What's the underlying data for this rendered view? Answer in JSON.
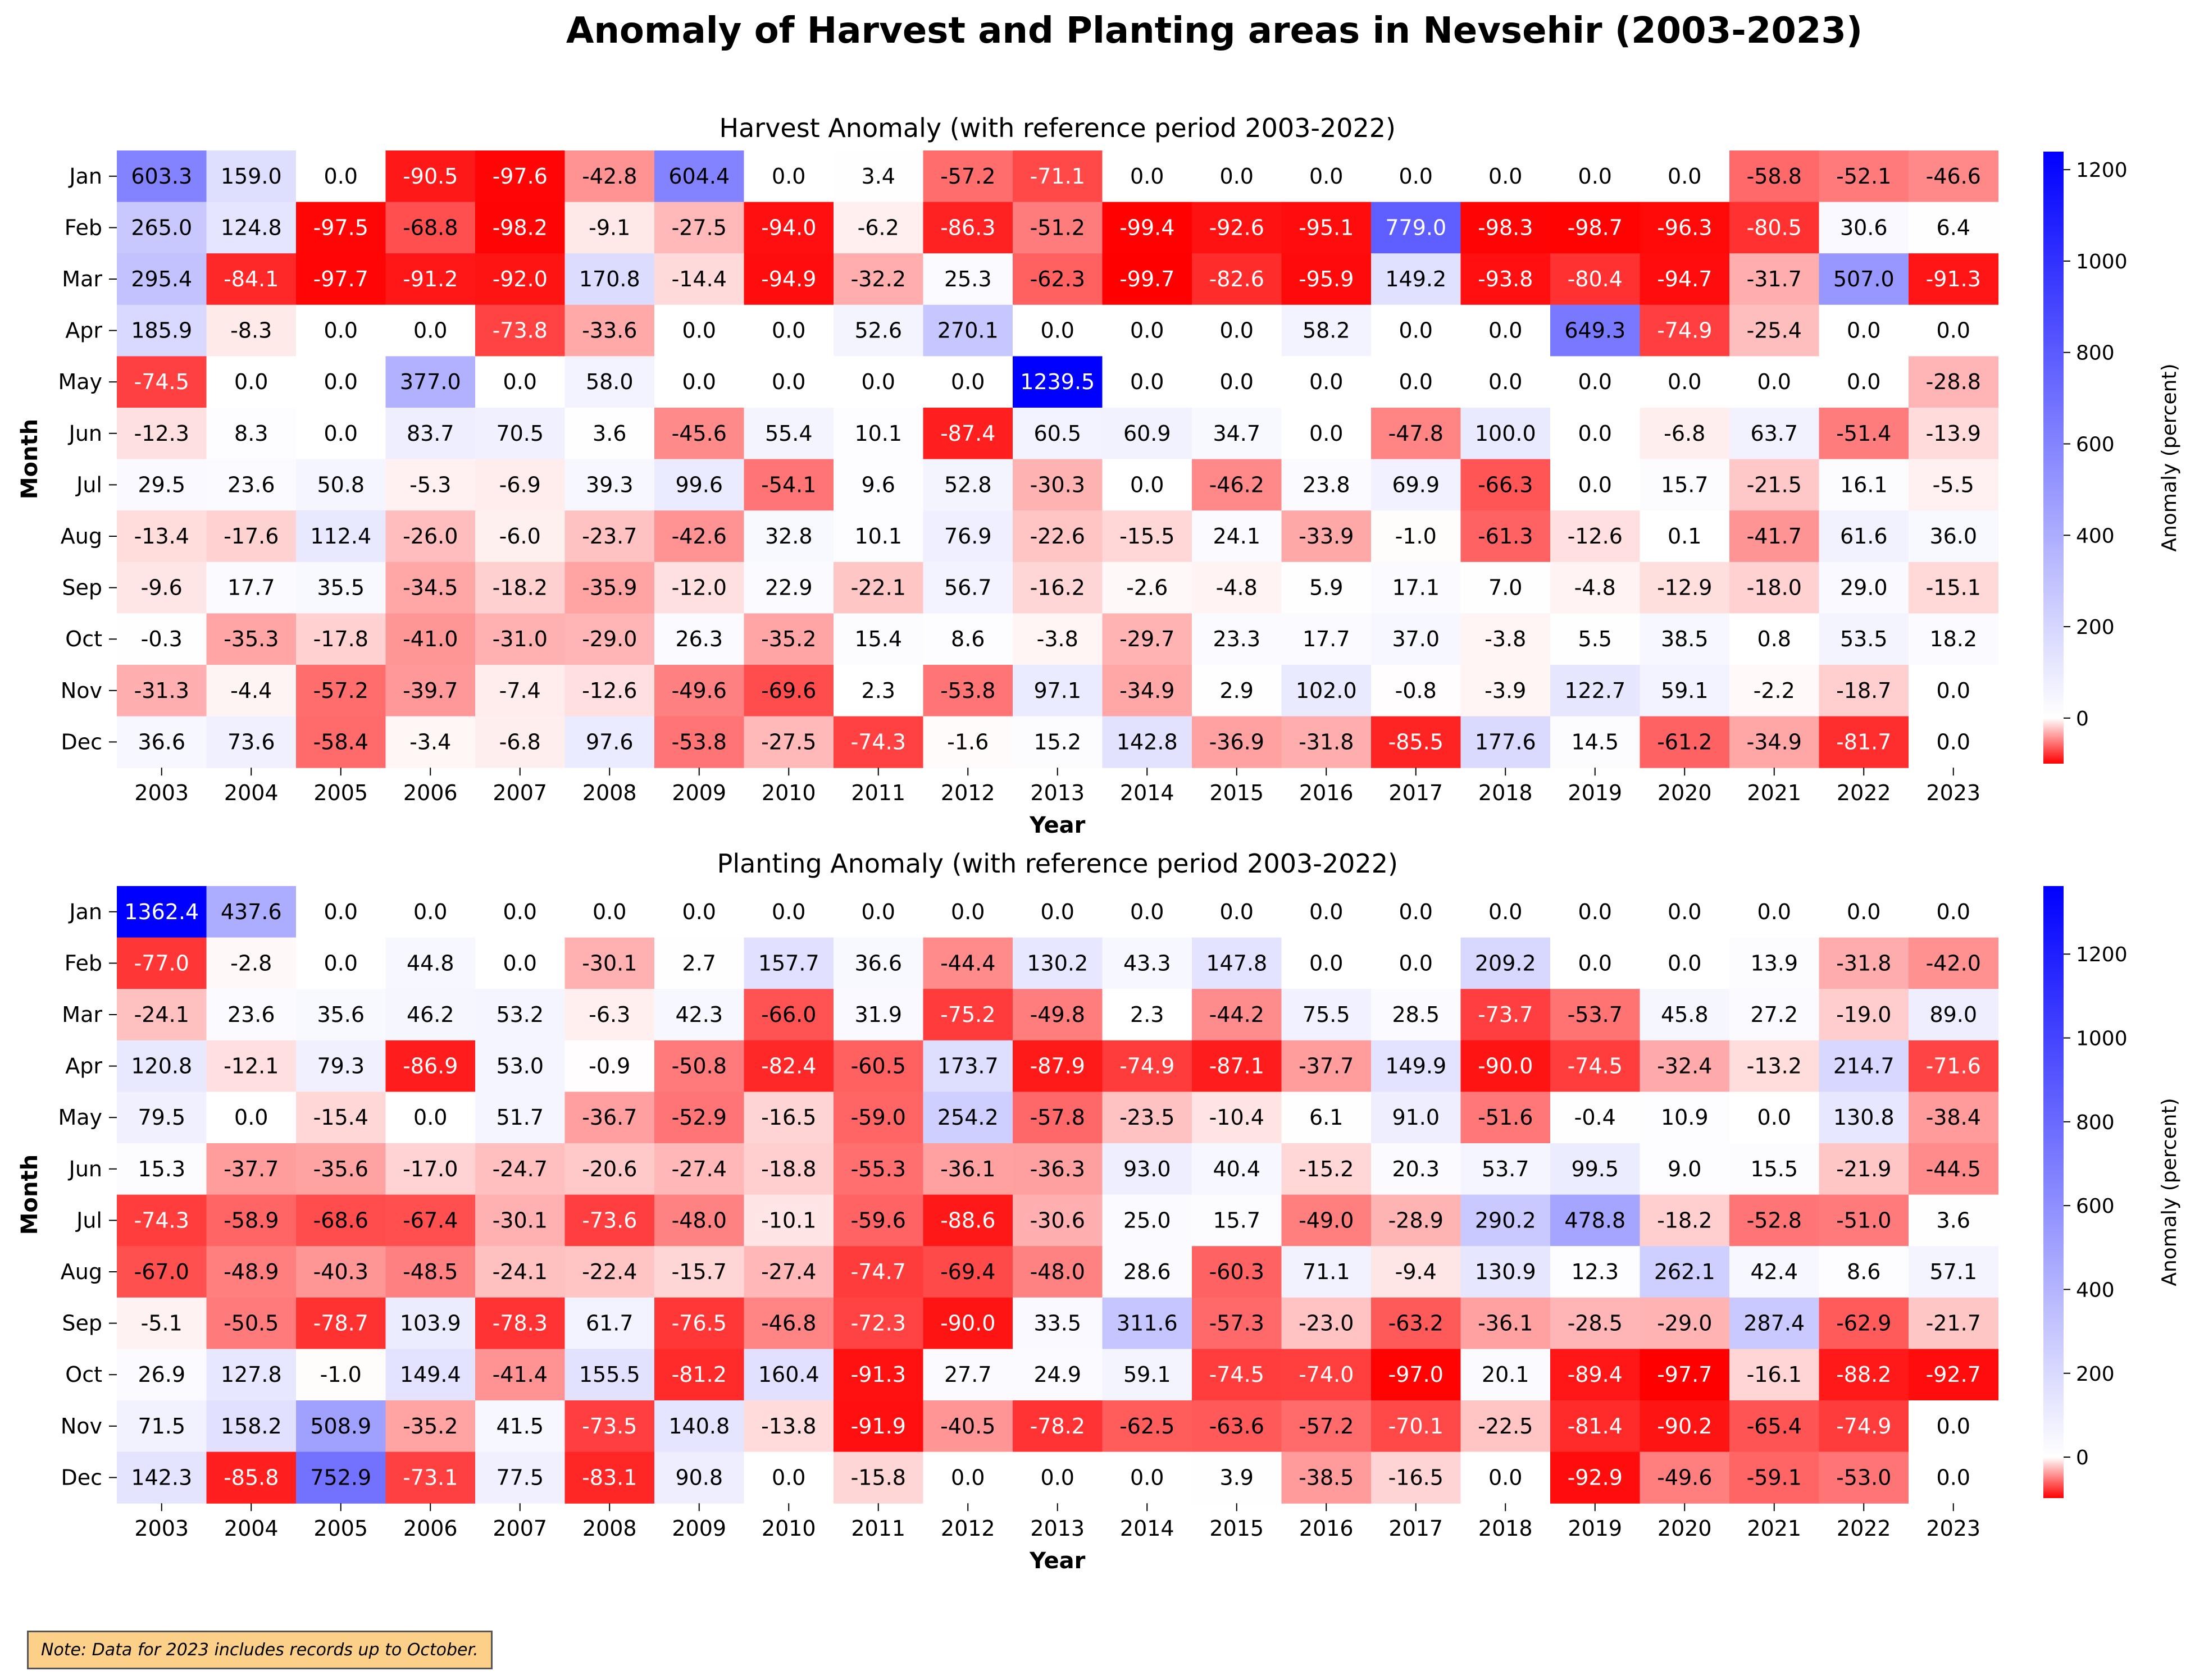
{
  "title": "Anomaly of Harvest and Planting areas in Nevsehir (2003-2023)",
  "note": "Note: Data for 2023 includes records up to October.",
  "colormap": {
    "negative": "#ff0000",
    "mid": "#ffffff",
    "positive": "#0000ff",
    "center": 0
  },
  "chart_data": [
    {
      "type": "heatmap",
      "title": "Harvest Anomaly (with reference period 2003-2022)",
      "xlabel": "Year",
      "ylabel": "Month",
      "colorbar_label": "Anomaly (percent)",
      "colorbar_ticks": [
        "0",
        "200",
        "400",
        "600",
        "800",
        "1000",
        "1200"
      ],
      "vmin": -99.7,
      "vmax": 1239.5,
      "x": [
        "2003",
        "2004",
        "2005",
        "2006",
        "2007",
        "2008",
        "2009",
        "2010",
        "2011",
        "2012",
        "2013",
        "2014",
        "2015",
        "2016",
        "2017",
        "2018",
        "2019",
        "2020",
        "2021",
        "2022",
        "2023"
      ],
      "y": [
        "Jan",
        "Feb",
        "Mar",
        "Apr",
        "May",
        "Jun",
        "Jul",
        "Aug",
        "Sep",
        "Oct",
        "Nov",
        "Dec"
      ],
      "values": [
        [
          603.3,
          159.0,
          0.0,
          -90.5,
          -97.6,
          -42.8,
          604.4,
          0.0,
          3.4,
          -57.2,
          -71.1,
          0.0,
          0.0,
          0.0,
          0.0,
          0.0,
          0.0,
          0.0,
          -58.8,
          -52.1,
          -46.6
        ],
        [
          265.0,
          124.8,
          -97.5,
          -68.8,
          -98.2,
          -9.1,
          -27.5,
          -94.0,
          -6.2,
          -86.3,
          -51.2,
          -99.4,
          -92.6,
          -95.1,
          779.0,
          -98.3,
          -98.7,
          -96.3,
          -80.5,
          30.6,
          6.4
        ],
        [
          295.4,
          -84.1,
          -97.7,
          -91.2,
          -92.0,
          170.8,
          -14.4,
          -94.9,
          -32.2,
          25.3,
          -62.3,
          -99.7,
          -82.6,
          -95.9,
          149.2,
          -93.8,
          -80.4,
          -94.7,
          -31.7,
          507.0,
          -91.3
        ],
        [
          185.9,
          -8.3,
          0.0,
          0.0,
          -73.8,
          -33.6,
          0.0,
          0.0,
          52.6,
          270.1,
          0.0,
          0.0,
          0.0,
          58.2,
          0.0,
          0.0,
          649.3,
          -74.9,
          -25.4,
          0.0,
          0.0
        ],
        [
          -74.5,
          0.0,
          0.0,
          377.0,
          0.0,
          58.0,
          0.0,
          0.0,
          0.0,
          0.0,
          1239.5,
          0.0,
          0.0,
          0.0,
          0.0,
          0.0,
          0.0,
          0.0,
          0.0,
          0.0,
          -28.8
        ],
        [
          -12.3,
          8.3,
          0.0,
          83.7,
          70.5,
          3.6,
          -45.6,
          55.4,
          10.1,
          -87.4,
          60.5,
          60.9,
          34.7,
          0.0,
          -47.8,
          100.0,
          0.0,
          -6.8,
          63.7,
          -51.4,
          -13.9
        ],
        [
          29.5,
          23.6,
          50.8,
          -5.3,
          -6.9,
          39.3,
          99.6,
          -54.1,
          9.6,
          52.8,
          -30.3,
          0.0,
          -46.2,
          23.8,
          69.9,
          -66.3,
          0.0,
          15.7,
          -21.5,
          16.1,
          -5.5
        ],
        [
          -13.4,
          -17.6,
          112.4,
          -26.0,
          -6.0,
          -23.7,
          -42.6,
          32.8,
          10.1,
          76.9,
          -22.6,
          -15.5,
          24.1,
          -33.9,
          -1.0,
          -61.3,
          -12.6,
          0.1,
          -41.7,
          61.6,
          36.0
        ],
        [
          -9.6,
          17.7,
          35.5,
          -34.5,
          -18.2,
          -35.9,
          -12.0,
          22.9,
          -22.1,
          56.7,
          -16.2,
          -2.6,
          -4.8,
          5.9,
          17.1,
          7.0,
          -4.8,
          -12.9,
          -18.0,
          29.0,
          -15.1
        ],
        [
          -0.3,
          -35.3,
          -17.8,
          -41.0,
          -31.0,
          -29.0,
          26.3,
          -35.2,
          15.4,
          8.6,
          -3.8,
          -29.7,
          23.3,
          17.7,
          37.0,
          -3.8,
          5.5,
          38.5,
          0.8,
          53.5,
          18.2
        ],
        [
          -31.3,
          -4.4,
          -57.2,
          -39.7,
          -7.4,
          -12.6,
          -49.6,
          -69.6,
          2.3,
          -53.8,
          97.1,
          -34.9,
          2.9,
          102.0,
          -0.8,
          -3.9,
          122.7,
          59.1,
          -2.2,
          -18.7,
          0.0
        ],
        [
          36.6,
          73.6,
          -58.4,
          -3.4,
          -6.8,
          97.6,
          -53.8,
          -27.5,
          -74.3,
          -1.6,
          15.2,
          142.8,
          -36.9,
          -31.8,
          -85.5,
          177.6,
          14.5,
          -61.2,
          -34.9,
          -81.7,
          0.0
        ]
      ]
    },
    {
      "type": "heatmap",
      "title": "Planting Anomaly (with reference period 2003-2022)",
      "xlabel": "Year",
      "ylabel": "Month",
      "colorbar_label": "Anomaly (percent)",
      "colorbar_ticks": [
        "0",
        "200",
        "400",
        "600",
        "800",
        "1000",
        "1200"
      ],
      "vmin": -97.7,
      "vmax": 1362.4,
      "x": [
        "2003",
        "2004",
        "2005",
        "2006",
        "2007",
        "2008",
        "2009",
        "2010",
        "2011",
        "2012",
        "2013",
        "2014",
        "2015",
        "2016",
        "2017",
        "2018",
        "2019",
        "2020",
        "2021",
        "2022",
        "2023"
      ],
      "y": [
        "Jan",
        "Feb",
        "Mar",
        "Apr",
        "May",
        "Jun",
        "Jul",
        "Aug",
        "Sep",
        "Oct",
        "Nov",
        "Dec"
      ],
      "values": [
        [
          1362.4,
          437.6,
          0.0,
          0.0,
          0.0,
          0.0,
          0.0,
          0.0,
          0.0,
          0.0,
          0.0,
          0.0,
          0.0,
          0.0,
          0.0,
          0.0,
          0.0,
          0.0,
          0.0,
          0.0,
          0.0
        ],
        [
          -77.0,
          -2.8,
          0.0,
          44.8,
          0.0,
          -30.1,
          2.7,
          157.7,
          36.6,
          -44.4,
          130.2,
          43.3,
          147.8,
          0.0,
          0.0,
          209.2,
          0.0,
          0.0,
          13.9,
          -31.8,
          -42.0
        ],
        [
          -24.1,
          23.6,
          35.6,
          46.2,
          53.2,
          -6.3,
          42.3,
          -66.0,
          31.9,
          -75.2,
          -49.8,
          2.3,
          -44.2,
          75.5,
          28.5,
          -73.7,
          -53.7,
          45.8,
          27.2,
          -19.0,
          89.0
        ],
        [
          120.8,
          -12.1,
          79.3,
          -86.9,
          53.0,
          -0.9,
          -50.8,
          -82.4,
          -60.5,
          173.7,
          -87.9,
          -74.9,
          -87.1,
          -37.7,
          149.9,
          -90.0,
          -74.5,
          -32.4,
          -13.2,
          214.7,
          -71.6
        ],
        [
          79.5,
          0.0,
          -15.4,
          0.0,
          51.7,
          -36.7,
          -52.9,
          -16.5,
          -59.0,
          254.2,
          -57.8,
          -23.5,
          -10.4,
          6.1,
          91.0,
          -51.6,
          -0.4,
          10.9,
          0.0,
          130.8,
          -38.4
        ],
        [
          15.3,
          -37.7,
          -35.6,
          -17.0,
          -24.7,
          -20.6,
          -27.4,
          -18.8,
          -55.3,
          -36.1,
          -36.3,
          93.0,
          40.4,
          -15.2,
          20.3,
          53.7,
          99.5,
          9.0,
          15.5,
          -21.9,
          -44.5
        ],
        [
          -74.3,
          -58.9,
          -68.6,
          -67.4,
          -30.1,
          -73.6,
          -48.0,
          -10.1,
          -59.6,
          -88.6,
          -30.6,
          25.0,
          15.7,
          -49.0,
          -28.9,
          290.2,
          478.8,
          -18.2,
          -52.8,
          -51.0,
          3.6
        ],
        [
          -67.0,
          -48.9,
          -40.3,
          -48.5,
          -24.1,
          -22.4,
          -15.7,
          -27.4,
          -74.7,
          -69.4,
          -48.0,
          28.6,
          -60.3,
          71.1,
          -9.4,
          130.9,
          12.3,
          262.1,
          42.4,
          8.6,
          57.1
        ],
        [
          -5.1,
          -50.5,
          -78.7,
          103.9,
          -78.3,
          61.7,
          -76.5,
          -46.8,
          -72.3,
          -90.0,
          33.5,
          311.6,
          -57.3,
          -23.0,
          -63.2,
          -36.1,
          -28.5,
          -29.0,
          287.4,
          -62.9,
          -21.7
        ],
        [
          26.9,
          127.8,
          -1.0,
          149.4,
          -41.4,
          155.5,
          -81.2,
          160.4,
          -91.3,
          27.7,
          24.9,
          59.1,
          -74.5,
          -74.0,
          -97.0,
          20.1,
          -89.4,
          -97.7,
          -16.1,
          -88.2,
          -92.7
        ],
        [
          71.5,
          158.2,
          508.9,
          -35.2,
          41.5,
          -73.5,
          140.8,
          -13.8,
          -91.9,
          -40.5,
          -78.2,
          -62.5,
          -63.6,
          -57.2,
          -70.1,
          -22.5,
          -81.4,
          -90.2,
          -65.4,
          -74.9,
          0.0
        ],
        [
          142.3,
          -85.8,
          752.9,
          -73.1,
          77.5,
          -83.1,
          90.8,
          0.0,
          -15.8,
          0.0,
          0.0,
          0.0,
          3.9,
          -38.5,
          -16.5,
          0.0,
          -92.9,
          -49.6,
          -59.1,
          -53.0,
          0.0
        ]
      ]
    }
  ]
}
